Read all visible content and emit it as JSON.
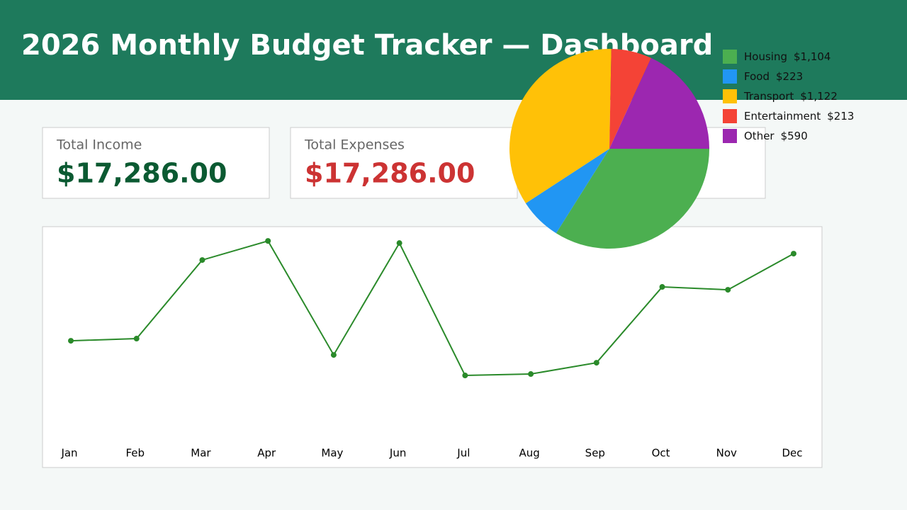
{
  "header": {
    "title": "2026 Monthly Budget Tracker — Dashboard"
  },
  "cards": [
    {
      "label": "Total Income",
      "value": "$17,286.00",
      "color": "#0b5a32"
    },
    {
      "label": "Total Expenses",
      "value": "$17,286.00",
      "color": "#cc3333"
    }
  ],
  "chart_data": [
    {
      "type": "line",
      "categories": [
        "Jan",
        "Feb",
        "Mar",
        "Apr",
        "May",
        "Jun",
        "Jul",
        "Aug",
        "Sep",
        "Oct",
        "Nov",
        "Dec"
      ],
      "values": [
        1098,
        1122,
        1999,
        2212,
        940,
        2188,
        711,
        727,
        853,
        1699,
        1667,
        2070
      ],
      "color": "#2a8a2a",
      "ylim": [
        0,
        2300
      ]
    },
    {
      "type": "pie",
      "categories": [
        "Housing",
        "Food",
        "Transport",
        "Entertainment",
        "Other"
      ],
      "values": [
        1104,
        223,
        1122,
        213,
        590
      ],
      "value_labels": [
        "$1,104",
        "$223",
        "$1,122",
        "$213",
        "$590"
      ],
      "colors": [
        "#4caf50",
        "#2196f3",
        "#ffc107",
        "#f44336",
        "#9c27b0"
      ]
    }
  ]
}
